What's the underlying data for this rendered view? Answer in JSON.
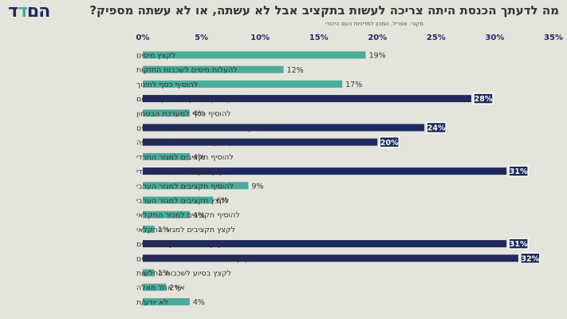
{
  "header": {
    "logo_main": "הם",
    "logo_accent": "ד",
    "logo_tail": "ד",
    "title": "מה לדעתך הכנסת היתה צריכה לעשות בתקציב אבל לא עשתה, או לא עשתה מספיק?",
    "source": "מקור: אפריל, המכון למדיניות העם היהודי"
  },
  "colors": {
    "background": "#e5e4dc",
    "teal": "#49ad9b",
    "navy": "#1e2a5e",
    "text": "#333333"
  },
  "chart_data": {
    "type": "bar",
    "orientation": "horizontal",
    "x_ticks": [
      "0%",
      "5%",
      "10%",
      "15%",
      "20%",
      "25%",
      "30%",
      "35%"
    ],
    "xlim": [
      0,
      35
    ],
    "grid": false,
    "categories": [
      "לקצץ מיסים",
      "להעלות מיסים לשכבות החזקות",
      "להוסיף כסף לחינוך",
      "להוסיף כסף לשיקום הצפון והדרום",
      "להוסיף כסף למערכת הבטחון",
      "להוסיף הטבות למשרתי הסדיר והמילואים",
      "להוסיף תקציבים למלחמה בפשיעה",
      "להוסיף תקציבים למגזר החרדי",
      "לקצץ תקציבים למגזר החרדי",
      "להוסיף תקציבים למגזר הערבי",
      "לקצץ תקציבים למגזר הערבי",
      "להוסיף תקציבים למגזר החקלאי",
      "לקצץ תקציבים למגזר החקלאי",
      "לקצץ בכספים הקואליציוניים",
      "לקצץ במספר המשרדים הממשלתיים",
      "לקצץ בסיוע לשכבות החלשות",
      "אף אחד מאלה",
      "לא יודע/ת"
    ],
    "values": [
      19,
      12,
      17,
      28,
      4,
      24,
      20,
      4,
      31,
      9,
      6,
      4,
      1,
      31,
      32,
      1,
      2,
      4
    ],
    "value_labels": [
      "19%",
      "12%",
      "17%",
      "28%",
      "4%",
      "24%",
      "20%",
      "4%",
      "31%",
      "9%",
      "6%",
      "4%",
      "1%",
      "31%",
      "32%",
      "1%",
      "2%",
      "4%"
    ],
    "highlight": [
      false,
      false,
      false,
      true,
      false,
      true,
      true,
      false,
      true,
      false,
      false,
      false,
      false,
      true,
      true,
      false,
      false,
      false
    ]
  }
}
